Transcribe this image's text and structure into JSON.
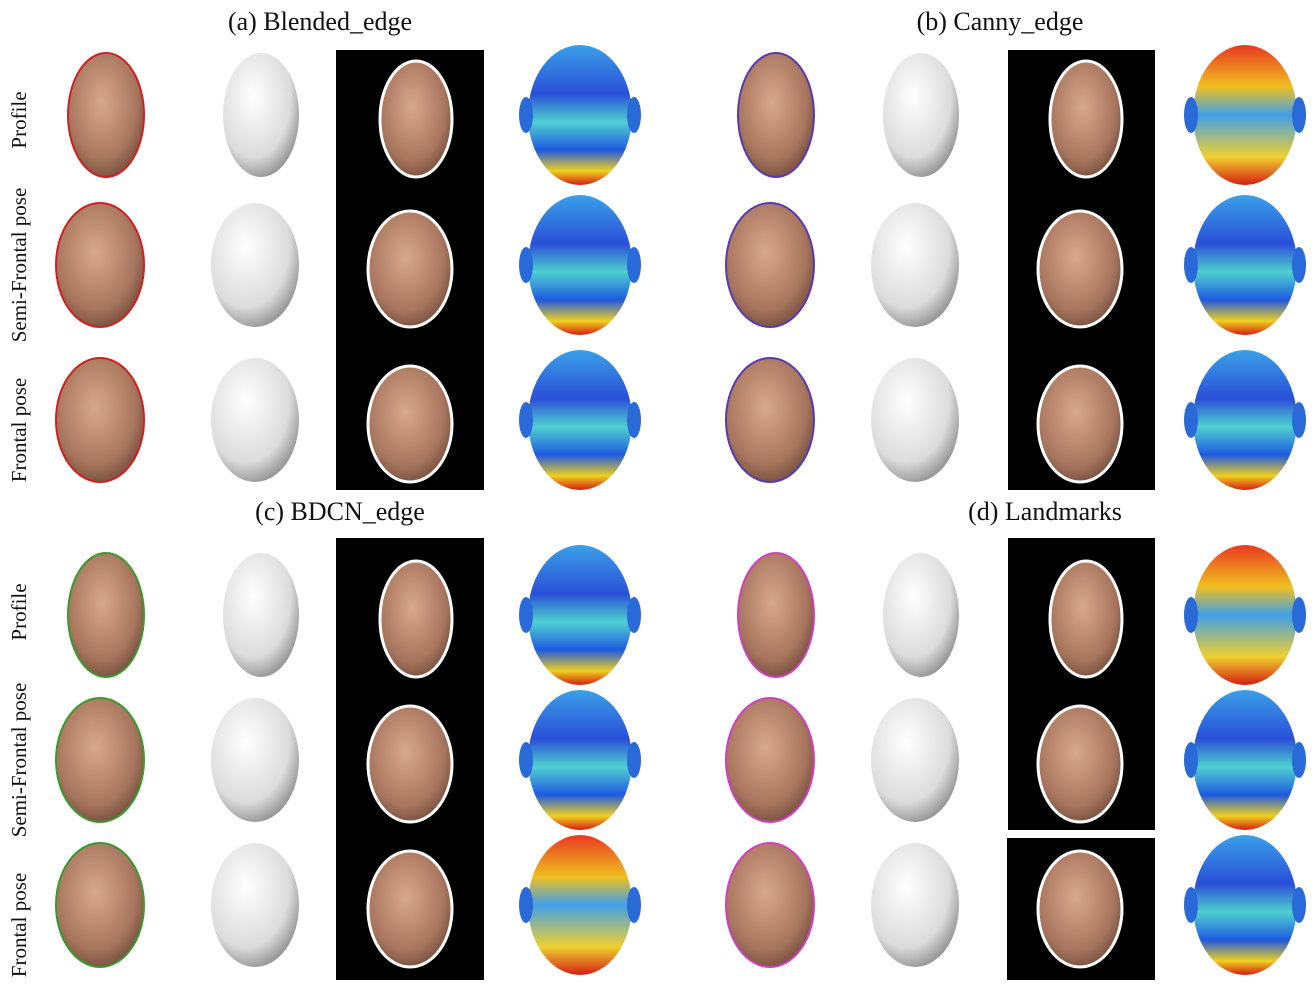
{
  "panels": [
    {
      "title": "(a) Blended_edge",
      "row_labels": [
        "Profile",
        "Semi-Frontal pose",
        "Frontal pose"
      ]
    },
    {
      "title": "(b) Canny_edge"
    },
    {
      "title": "(c) BDCN_edge",
      "row_labels": [
        "Profile",
        "Semi-Frontal pose",
        "Frontal pose"
      ]
    },
    {
      "title": "(d) Landmarks"
    }
  ]
}
